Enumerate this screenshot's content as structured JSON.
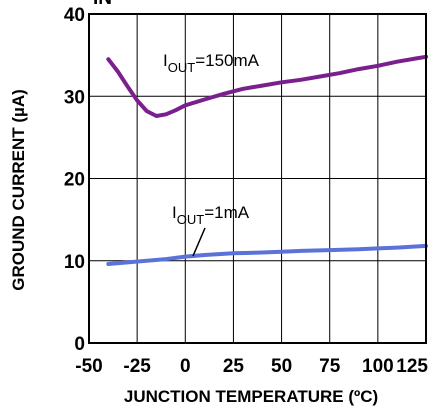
{
  "chart_data": {
    "type": "line",
    "title": "",
    "top_cut_label": "IN",
    "xlabel": "JUNCTION TEMPERATURE (ºC)",
    "ylabel": "GROUND CURRENT (µA)",
    "xlim": [
      -50,
      125
    ],
    "ylim": [
      0,
      40
    ],
    "x_ticks": [
      -50,
      -25,
      0,
      25,
      50,
      75,
      100,
      125
    ],
    "x_tick_labels": [
      "-50",
      "-25",
      "0",
      "25",
      "50",
      "75",
      "100",
      "125"
    ],
    "y_ticks": [
      0,
      10,
      20,
      30,
      40
    ],
    "y_tick_labels": [
      "0",
      "10",
      "20",
      "30",
      "40"
    ],
    "grid": true,
    "series": [
      {
        "name_main": "I",
        "name_sub": "OUT",
        "name_value": "=150mA",
        "color": "#7b1f8f",
        "x": [
          -40,
          -35,
          -30,
          -25,
          -20,
          -15,
          -10,
          -5,
          0,
          10,
          20,
          30,
          40,
          50,
          60,
          70,
          80,
          90,
          100,
          110,
          120,
          125
        ],
        "y": [
          34.5,
          33.0,
          31.2,
          29.5,
          28.2,
          27.6,
          27.8,
          28.3,
          28.9,
          29.6,
          30.3,
          30.9,
          31.3,
          31.7,
          32.0,
          32.4,
          32.8,
          33.3,
          33.7,
          34.2,
          34.6,
          34.8
        ]
      },
      {
        "name_main": "I",
        "name_sub": "OUT",
        "name_value": "=1mA",
        "color": "#5b73d9",
        "x": [
          -40,
          -30,
          -20,
          -10,
          0,
          10,
          25,
          40,
          50,
          60,
          75,
          90,
          100,
          110,
          125
        ],
        "y": [
          9.6,
          9.8,
          10.0,
          10.2,
          10.5,
          10.7,
          10.9,
          11.0,
          11.1,
          11.2,
          11.3,
          11.4,
          11.5,
          11.6,
          11.8
        ]
      }
    ]
  }
}
